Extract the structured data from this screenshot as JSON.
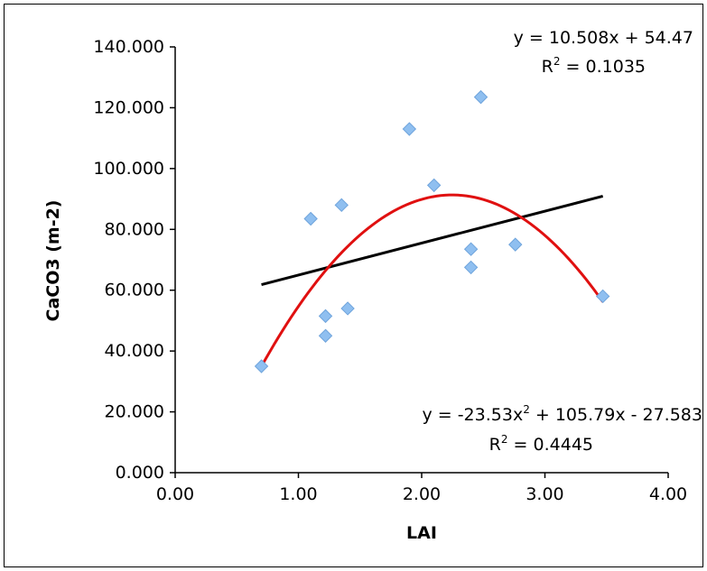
{
  "chart_data": {
    "type": "scatter",
    "title": "",
    "xlabel": "LAI",
    "ylabel": "CaCO3 (m-2)",
    "xlim": [
      0,
      4
    ],
    "ylim": [
      0,
      140
    ],
    "x_ticks": [
      "0.00",
      "1.00",
      "2.00",
      "3.00",
      "4.00"
    ],
    "y_ticks": [
      "0.000",
      "20.000",
      "40.000",
      "60.000",
      "80.000",
      "100.000",
      "120.000",
      "140.000"
    ],
    "grid": false,
    "legend": "none",
    "marker_color": "#8fbff0",
    "points": [
      {
        "x": 0.7,
        "y": 35.0
      },
      {
        "x": 1.1,
        "y": 83.5
      },
      {
        "x": 1.22,
        "y": 51.5
      },
      {
        "x": 1.22,
        "y": 45.0
      },
      {
        "x": 1.35,
        "y": 88.0
      },
      {
        "x": 1.4,
        "y": 54.0
      },
      {
        "x": 1.9,
        "y": 113.0
      },
      {
        "x": 2.1,
        "y": 94.5
      },
      {
        "x": 2.4,
        "y": 73.5
      },
      {
        "x": 2.4,
        "y": 67.5
      },
      {
        "x": 2.48,
        "y": 123.5
      },
      {
        "x": 2.76,
        "y": 75.0
      },
      {
        "x": 3.47,
        "y": 58.0
      }
    ],
    "trendlines": [
      {
        "kind": "linear",
        "color": "#000000",
        "slope": 10.508,
        "intercept": 54.47,
        "x_range": [
          0.7,
          3.47
        ],
        "equation_text": "y = 10.508x + 54.47",
        "r2_label": "R",
        "r2_sup": "2",
        "r2_value_text": " = 0.1035"
      },
      {
        "kind": "polynomial",
        "color": "#e01010",
        "a": -23.53,
        "b": 105.79,
        "c": -27.583,
        "x_range": [
          0.7,
          3.47
        ],
        "equation_part1": "y = -23.53x",
        "equation_sup": "2",
        "equation_part2": " + 105.79x - 27.583",
        "r2_label": "R",
        "r2_sup": "2",
        "r2_value_text": " = 0.4445"
      }
    ]
  }
}
